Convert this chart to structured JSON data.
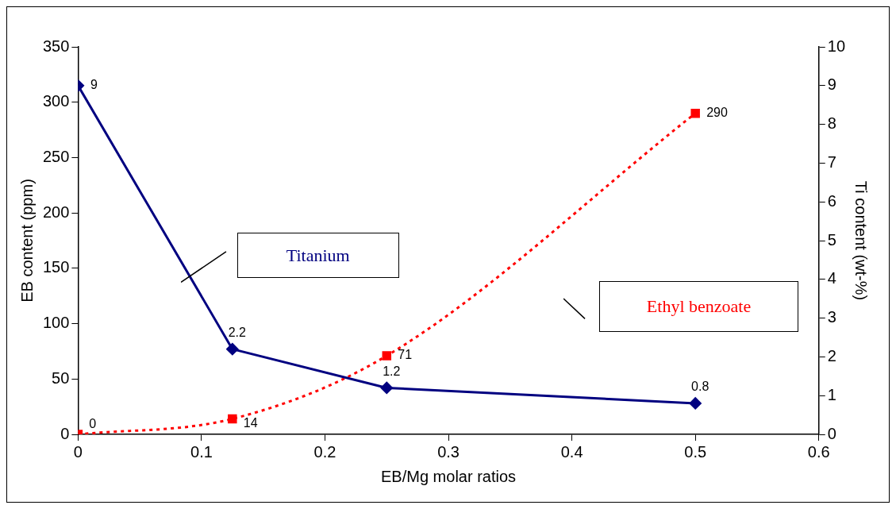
{
  "chart_data": {
    "type": "line",
    "xlabel": "EB/Mg molar ratios",
    "ylabel": "EB content (ppm)",
    "y2label": "Ti content (wt-%)",
    "x": [
      0,
      0.125,
      0.25,
      0.5
    ],
    "series": [
      {
        "name": "Titanium",
        "color": "#000080",
        "values": [
          9,
          2.2,
          1.2,
          0.8
        ],
        "axis": "y2",
        "marker": "diamond",
        "line_style": "solid"
      },
      {
        "name": "Ethyl benzoate",
        "color": "#ff0000",
        "values": [
          0,
          14,
          71,
          290
        ],
        "marker": "square",
        "line_style": "dotted"
      }
    ],
    "xlim": [
      0,
      0.6
    ],
    "xticks": [
      0,
      0.1,
      0.2,
      0.3,
      0.4,
      0.5,
      0.6
    ],
    "ylim": [
      0,
      350
    ],
    "yticks": [
      0,
      50,
      100,
      150,
      200,
      250,
      300,
      350
    ],
    "y2lim": [
      0,
      10
    ],
    "y2ticks": [
      0,
      1,
      2,
      3,
      4,
      5,
      6,
      7,
      8,
      9,
      10
    ],
    "data_labels": true,
    "grid": false,
    "legend": false
  }
}
